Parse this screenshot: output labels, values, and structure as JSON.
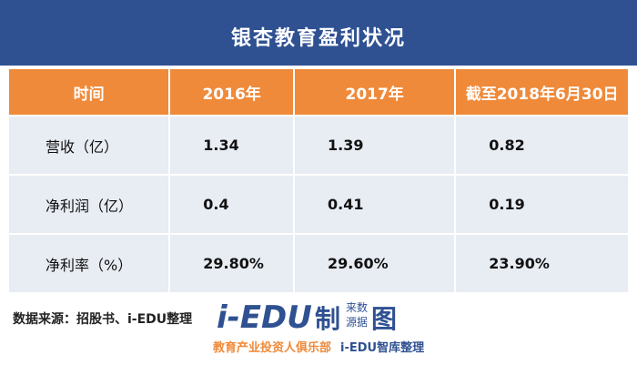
{
  "header": {
    "title": "银杏教育盈利状况"
  },
  "table": {
    "columns": [
      "时间",
      "2016年",
      "2017年",
      "截至2018年6月30日"
    ],
    "rows": [
      [
        "营收（亿）",
        "1.34",
        "1.39",
        "0.82"
      ],
      [
        "净利润（亿）",
        "0.4",
        "0.41",
        "0.19"
      ],
      [
        "净利率（%）",
        "29.80%",
        "29.60%",
        "23.90%"
      ]
    ]
  },
  "footer": {
    "source": "数据来源：招股书、i-EDU整理",
    "logo": {
      "brand": "i-EDU",
      "char1": "制",
      "small1": "来数",
      "small2": "源据",
      "char2": "图",
      "slogan": "教育产业投资人俱乐部",
      "slogan2": "i-EDU智库整理"
    }
  }
}
